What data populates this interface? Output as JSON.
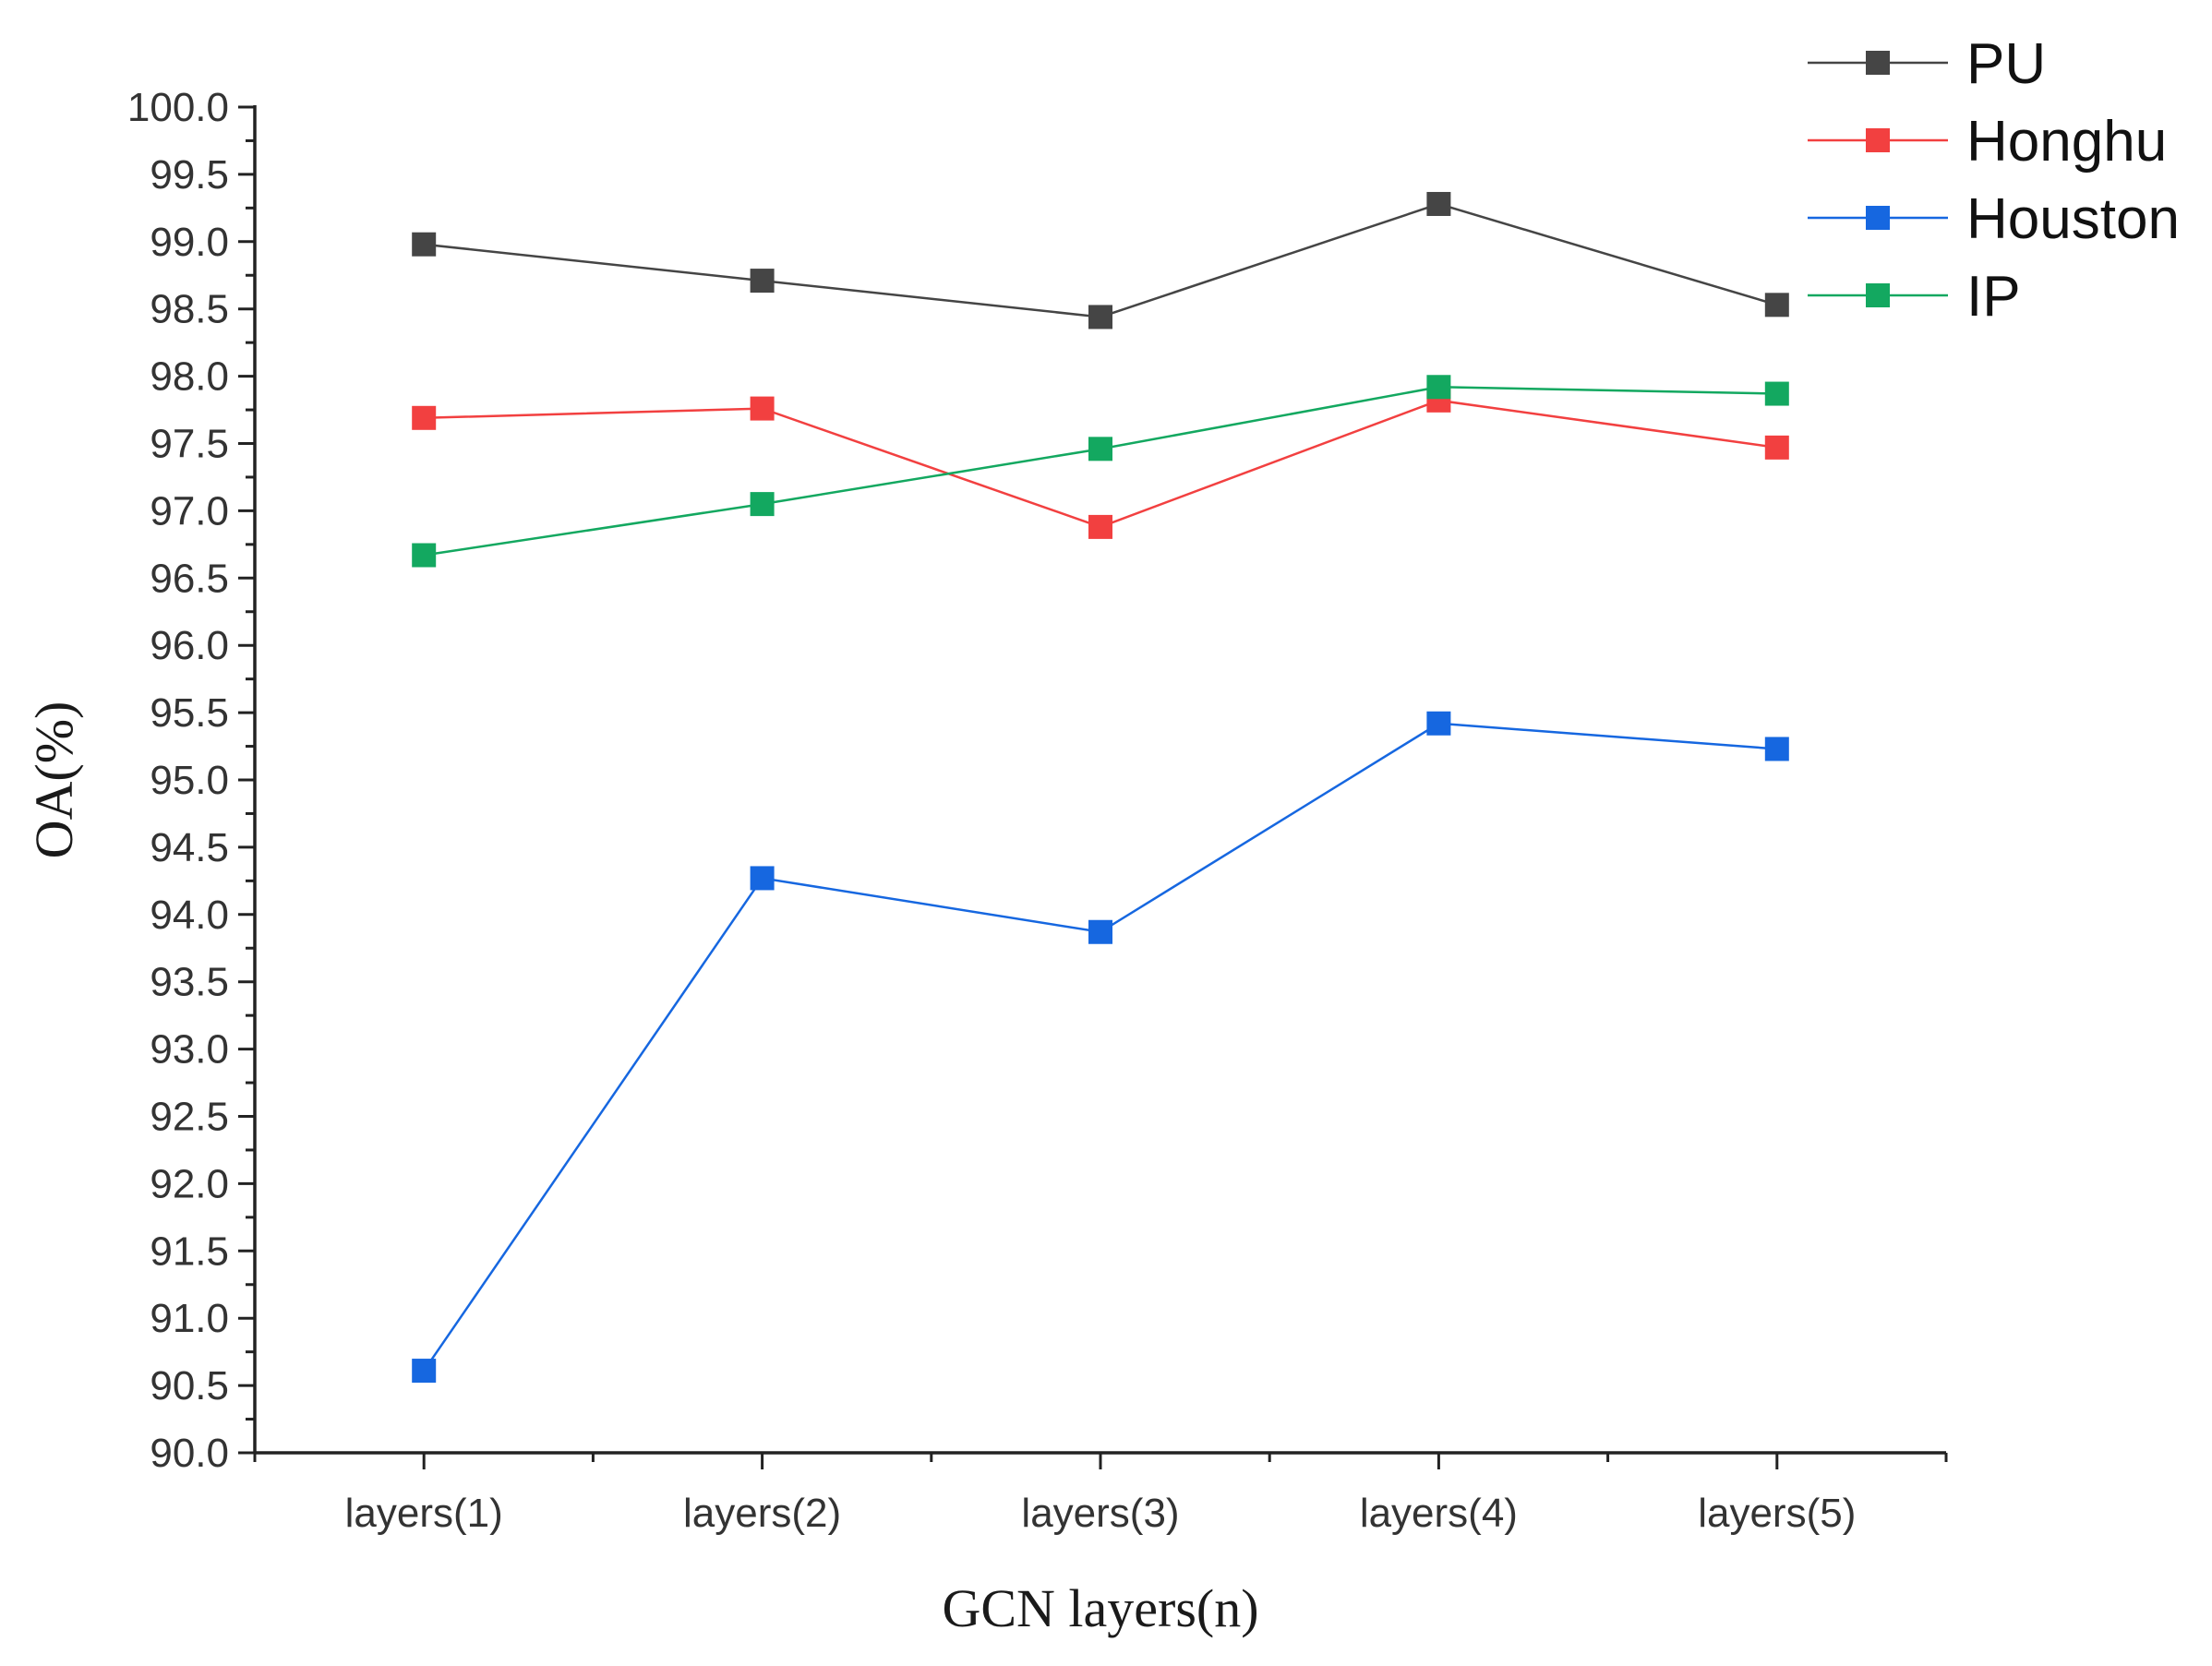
{
  "chart_data": {
    "type": "line",
    "title": "",
    "xlabel": "GCN layers(n)",
    "ylabel": "OA(%)",
    "categories": [
      "layers(1)",
      "layers(2)",
      "layers(3)",
      "layers(4)",
      "layers(5)"
    ],
    "ylim": [
      90.0,
      100.0
    ],
    "yticks": [
      "90.0",
      "90.5",
      "91.0",
      "91.5",
      "92.0",
      "92.5",
      "93.0",
      "93.5",
      "94.0",
      "94.5",
      "95.0",
      "95.5",
      "96.0",
      "96.5",
      "97.0",
      "97.5",
      "98.0",
      "98.5",
      "99.0",
      "99.5",
      "100.0"
    ],
    "legend_position": "top-right",
    "series": [
      {
        "name": "PU",
        "color": "#454545",
        "values": [
          98.98,
          98.71,
          98.44,
          99.28,
          98.53
        ]
      },
      {
        "name": "Honghu",
        "color": "#f24040",
        "values": [
          97.69,
          97.76,
          96.88,
          97.82,
          97.47
        ]
      },
      {
        "name": "Houston",
        "color": "#1667e0",
        "values": [
          90.61,
          94.27,
          93.87,
          95.42,
          95.23
        ]
      },
      {
        "name": "IP",
        "color": "#13a860",
        "values": [
          96.67,
          97.05,
          97.46,
          97.92,
          97.87
        ]
      }
    ]
  }
}
